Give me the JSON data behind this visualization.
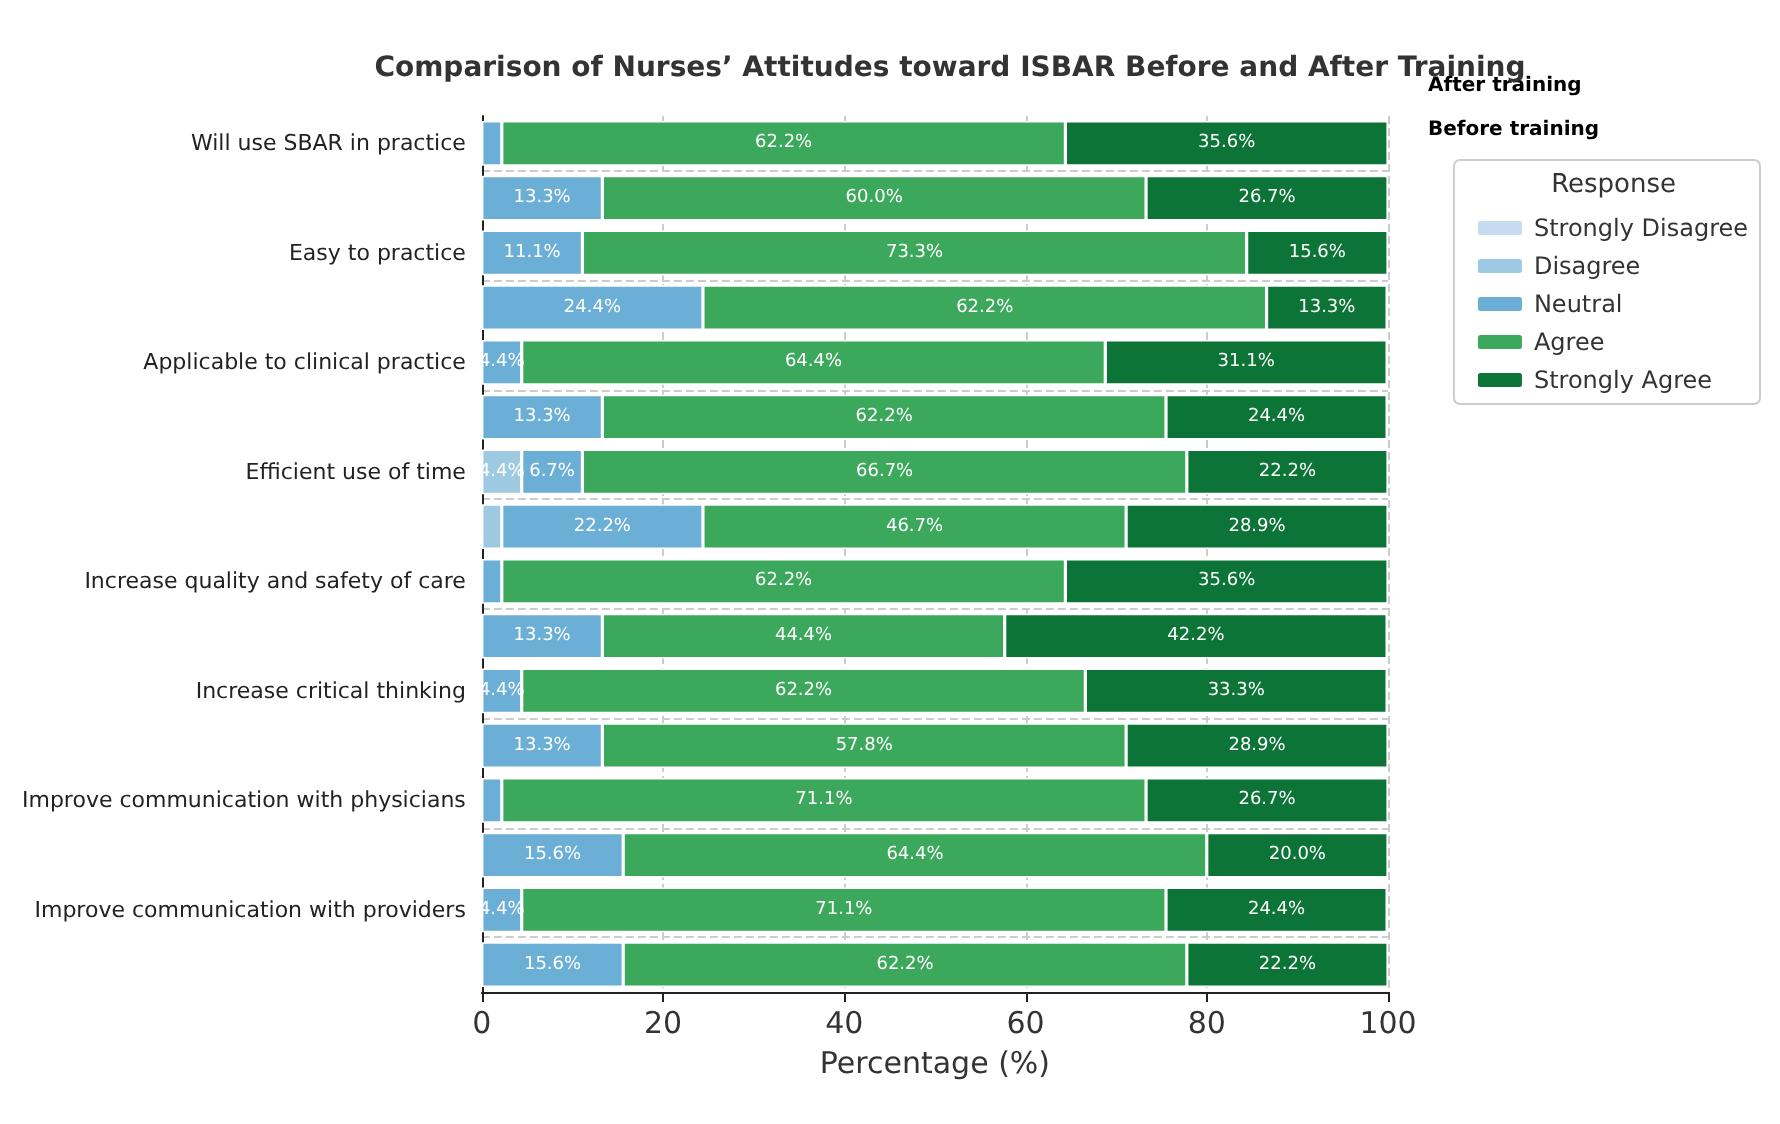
{
  "chart_data": {
    "type": "bar",
    "orientation": "horizontal",
    "stacked": true,
    "title": "Comparison of Nurses’ Attitudes toward ISBAR Before and After Training",
    "xlabel": "Percentage (%)",
    "legend_title": "Response",
    "legend": "top right",
    "grid": true,
    "xlim": [
      0,
      100
    ],
    "xticks": [
      0,
      20,
      40,
      60,
      80,
      100
    ],
    "annotations": [
      "After training",
      "Before training"
    ],
    "categories": [
      "Will use SBAR in practice",
      null,
      "Easy to practice",
      null,
      "Applicable to clinical practice",
      null,
      "Efficient use of time",
      null,
      "Increase quality and safety of care",
      null,
      "Increase critical thinking",
      null,
      "Improve communication with physicians",
      null,
      "Improve communication with providers",
      null
    ],
    "series": [
      {
        "name": "Strongly Disagree",
        "color": "#c6dbef",
        "values": [
          null,
          null,
          null,
          null,
          null,
          null,
          null,
          null,
          null,
          null,
          null,
          null,
          null,
          null,
          null,
          null
        ]
      },
      {
        "name": "Disagree",
        "color": "#9ecae1",
        "values": [
          null,
          null,
          null,
          null,
          null,
          null,
          4.4,
          2.2,
          null,
          null,
          null,
          null,
          null,
          null,
          null,
          null
        ],
        "value_labels": [
          null,
          null,
          null,
          null,
          null,
          null,
          "4.4%",
          null,
          null,
          null,
          null,
          null,
          null,
          null,
          null,
          null
        ]
      },
      {
        "name": "Neutral",
        "color": "#6baed6",
        "values": [
          2.2,
          13.3,
          11.1,
          24.4,
          4.4,
          13.3,
          6.7,
          22.2,
          2.2,
          13.3,
          4.4,
          13.3,
          2.2,
          15.6,
          4.4,
          15.6
        ],
        "value_labels": [
          null,
          "13.3%",
          "11.1%",
          "24.4%",
          "4.4%",
          "13.3%",
          "6.7%",
          "22.2%",
          null,
          "13.3%",
          "4.4%",
          "13.3%",
          null,
          "15.6%",
          "4.4%",
          "15.6%"
        ]
      },
      {
        "name": "Agree",
        "color": "#3ba85c",
        "values": [
          62.2,
          60.0,
          73.3,
          62.2,
          64.4,
          62.2,
          66.7,
          46.7,
          62.2,
          44.4,
          62.2,
          57.8,
          71.1,
          64.4,
          71.1,
          62.2
        ],
        "value_labels": [
          "62.2%",
          "60.0%",
          "73.3%",
          "62.2%",
          "64.4%",
          "62.2%",
          "66.7%",
          "46.7%",
          "62.2%",
          "44.4%",
          "62.2%",
          "57.8%",
          "71.1%",
          "64.4%",
          "71.1%",
          "62.2%"
        ]
      },
      {
        "name": "Strongly Agree",
        "color": "#0b7436",
        "values": [
          35.6,
          26.7,
          15.6,
          13.3,
          31.1,
          24.4,
          22.2,
          28.9,
          35.6,
          42.2,
          33.3,
          28.9,
          26.7,
          20.0,
          24.4,
          22.2
        ],
        "value_labels": [
          "35.6%",
          "26.7%",
          "15.6%",
          "13.3%",
          "31.1%",
          "24.4%",
          "22.2%",
          "28.9%",
          "35.6%",
          "42.2%",
          "33.3%",
          "28.9%",
          "26.7%",
          "20.0%",
          "24.4%",
          "22.2%"
        ]
      }
    ]
  }
}
